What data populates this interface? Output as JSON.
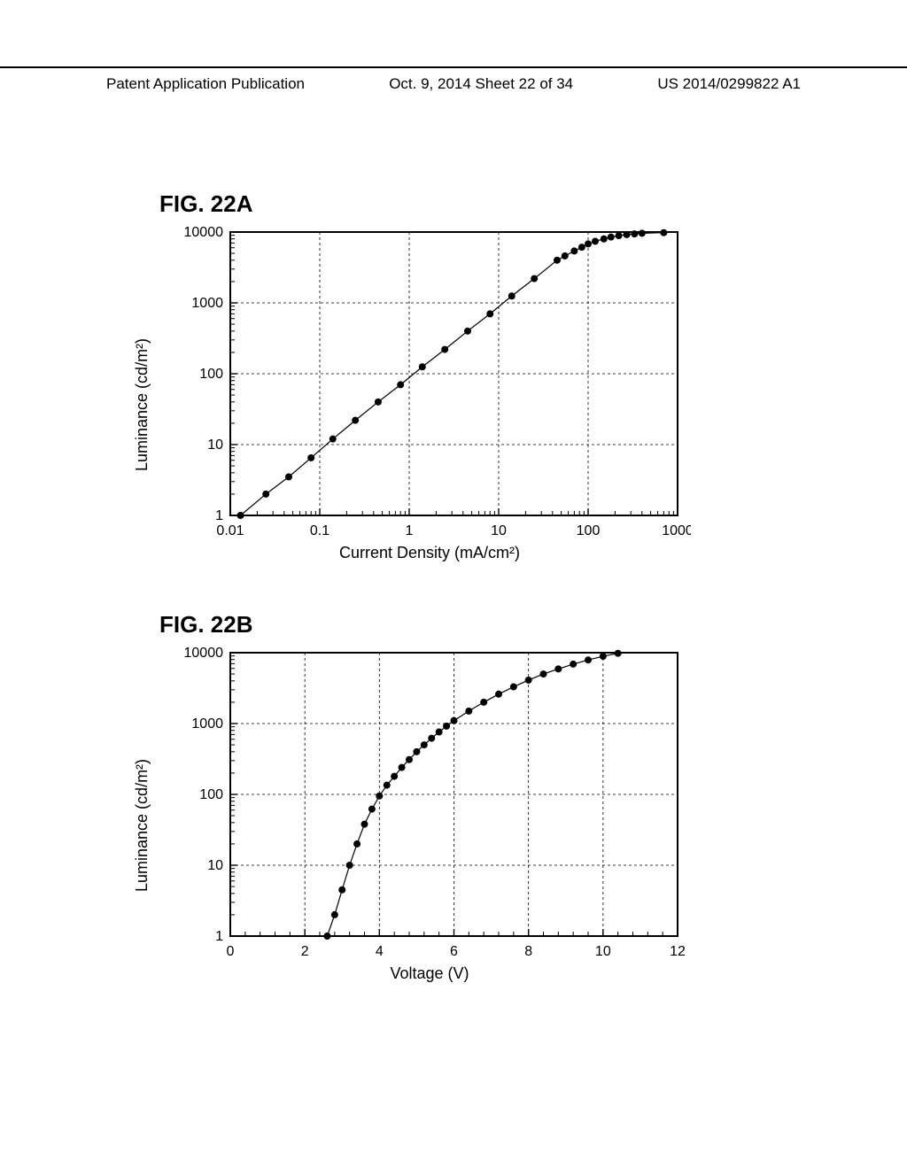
{
  "header": {
    "left": "Patent Application Publication",
    "center": "Oct. 9, 2014  Sheet 22 of 34",
    "right": "US 2014/0299822 A1"
  },
  "chartA": {
    "title": "FIG. 22A",
    "type": "scatter-line-loglog",
    "xlabel": "Current Density (mA/cm²)",
    "ylabel": "Luminance (cd/m²)",
    "xlim": [
      0.01,
      1000
    ],
    "ylim": [
      1,
      10000
    ],
    "xticks": [
      0.01,
      0.1,
      1,
      10,
      100,
      1000
    ],
    "xtick_labels": [
      "0.01",
      "0.1",
      "1",
      "10",
      "100",
      "1000"
    ],
    "yticks": [
      1,
      10,
      100,
      1000,
      10000
    ],
    "ytick_labels": [
      "1",
      "10",
      "100",
      "1000",
      "10000"
    ],
    "grid_color": "#000000",
    "grid_dash": "3,3",
    "line_color": "#000000",
    "marker_color": "#000000",
    "marker_size": 4,
    "line_width": 1.2,
    "background_color": "#ffffff",
    "border_color": "#000000",
    "border_width": 2,
    "tick_fontsize": 16,
    "label_fontsize": 18,
    "title_fontsize": 26,
    "data": [
      {
        "x": 0.013,
        "y": 1.0
      },
      {
        "x": 0.025,
        "y": 2.0
      },
      {
        "x": 0.045,
        "y": 3.5
      },
      {
        "x": 0.08,
        "y": 6.5
      },
      {
        "x": 0.14,
        "y": 12
      },
      {
        "x": 0.25,
        "y": 22
      },
      {
        "x": 0.45,
        "y": 40
      },
      {
        "x": 0.8,
        "y": 70
      },
      {
        "x": 1.4,
        "y": 125
      },
      {
        "x": 2.5,
        "y": 220
      },
      {
        "x": 4.5,
        "y": 400
      },
      {
        "x": 8.0,
        "y": 700
      },
      {
        "x": 14,
        "y": 1250
      },
      {
        "x": 25,
        "y": 2200
      },
      {
        "x": 45,
        "y": 4000
      },
      {
        "x": 55,
        "y": 4600
      },
      {
        "x": 70,
        "y": 5400
      },
      {
        "x": 85,
        "y": 6100
      },
      {
        "x": 100,
        "y": 6800
      },
      {
        "x": 120,
        "y": 7400
      },
      {
        "x": 150,
        "y": 8000
      },
      {
        "x": 180,
        "y": 8500
      },
      {
        "x": 220,
        "y": 8900
      },
      {
        "x": 270,
        "y": 9200
      },
      {
        "x": 330,
        "y": 9400
      },
      {
        "x": 400,
        "y": 9600
      },
      {
        "x": 700,
        "y": 9800
      }
    ]
  },
  "chartB": {
    "title": "FIG. 22B",
    "type": "scatter-line-linlog",
    "xlabel": "Voltage (V)",
    "ylabel": "Luminance (cd/m²)",
    "xlim": [
      0,
      12
    ],
    "ylim": [
      1,
      10000
    ],
    "xticks": [
      0,
      2,
      4,
      6,
      8,
      10,
      12
    ],
    "xtick_labels": [
      "0",
      "2",
      "4",
      "6",
      "8",
      "10",
      "12"
    ],
    "yticks": [
      1,
      10,
      100,
      1000,
      10000
    ],
    "ytick_labels": [
      "1",
      "10",
      "100",
      "1000",
      "10000"
    ],
    "minor_xtick_step": 0.4,
    "grid_color": "#000000",
    "grid_dash": "3,3",
    "line_color": "#000000",
    "marker_color": "#000000",
    "marker_size": 4,
    "line_width": 1.2,
    "background_color": "#ffffff",
    "border_color": "#000000",
    "border_width": 2,
    "tick_fontsize": 16,
    "label_fontsize": 18,
    "title_fontsize": 26,
    "data": [
      {
        "x": 2.6,
        "y": 1.0
      },
      {
        "x": 2.8,
        "y": 2.0
      },
      {
        "x": 3.0,
        "y": 4.5
      },
      {
        "x": 3.2,
        "y": 10
      },
      {
        "x": 3.4,
        "y": 20
      },
      {
        "x": 3.6,
        "y": 38
      },
      {
        "x": 3.8,
        "y": 62
      },
      {
        "x": 4.0,
        "y": 95
      },
      {
        "x": 4.2,
        "y": 135
      },
      {
        "x": 4.4,
        "y": 180
      },
      {
        "x": 4.6,
        "y": 240
      },
      {
        "x": 4.8,
        "y": 310
      },
      {
        "x": 5.0,
        "y": 400
      },
      {
        "x": 5.2,
        "y": 500
      },
      {
        "x": 5.4,
        "y": 620
      },
      {
        "x": 5.6,
        "y": 760
      },
      {
        "x": 5.8,
        "y": 920
      },
      {
        "x": 6.0,
        "y": 1100
      },
      {
        "x": 6.4,
        "y": 1500
      },
      {
        "x": 6.8,
        "y": 2000
      },
      {
        "x": 7.2,
        "y": 2600
      },
      {
        "x": 7.6,
        "y": 3300
      },
      {
        "x": 8.0,
        "y": 4100
      },
      {
        "x": 8.4,
        "y": 5000
      },
      {
        "x": 8.8,
        "y": 5900
      },
      {
        "x": 9.2,
        "y": 6900
      },
      {
        "x": 9.6,
        "y": 7900
      },
      {
        "x": 10.0,
        "y": 8900
      },
      {
        "x": 10.4,
        "y": 9800
      }
    ]
  }
}
